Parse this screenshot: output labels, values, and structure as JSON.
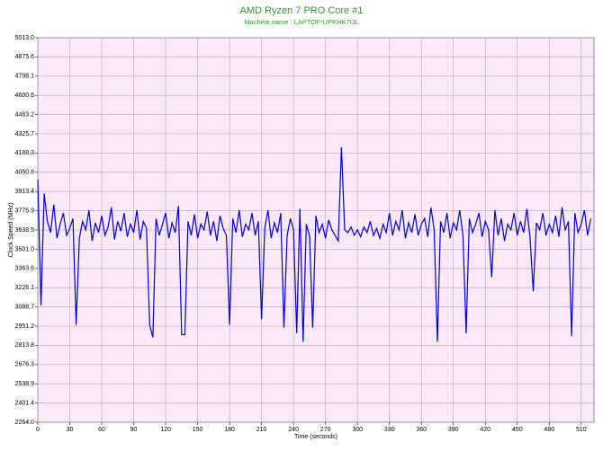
{
  "chart_data": {
    "type": "line",
    "title": "AMD Ryzen 7 PRO Core #1",
    "subtitle": "Machine name : LAPTOP-UPKHK7OL",
    "x_label": "Time (seconds)",
    "y_label": "Clock Speed (MHz)",
    "xlim": [
      0,
      522
    ],
    "ylim": [
      2264.0,
      5013.0
    ],
    "xticks": [
      0,
      30,
      60,
      90,
      120,
      150,
      180,
      210,
      240,
      270,
      300,
      330,
      360,
      390,
      420,
      450,
      480,
      510
    ],
    "yticks": [
      {
        "value": 2264.0,
        "label": "2264.0"
      },
      2401.4,
      2538.9,
      2676.3,
      2813.8,
      2951.2,
      3088.7,
      3226.1,
      3363.6,
      {
        "value": 3501.0,
        "label": "3501.0"
      },
      3638.5,
      3775.9,
      3913.4,
      4050.8,
      4188.3,
      4325.7,
      4463.2,
      4600.6,
      4738.1,
      4875.6,
      {
        "value": 5013.0,
        "label": "5013.0"
      }
    ],
    "grid": true,
    "x": [
      0,
      3,
      6,
      9,
      12,
      15,
      18,
      21,
      24,
      27,
      30,
      33,
      36,
      39,
      42,
      45,
      48,
      51,
      54,
      57,
      60,
      63,
      66,
      69,
      72,
      75,
      78,
      81,
      84,
      87,
      90,
      93,
      96,
      99,
      102,
      105,
      108,
      111,
      114,
      117,
      120,
      123,
      126,
      129,
      132,
      135,
      138,
      141,
      144,
      147,
      150,
      153,
      156,
      159,
      162,
      165,
      168,
      171,
      174,
      177,
      180,
      183,
      186,
      189,
      192,
      195,
      198,
      201,
      204,
      207,
      210,
      213,
      216,
      219,
      222,
      225,
      228,
      231,
      234,
      237,
      240,
      243,
      246,
      249,
      252,
      255,
      258,
      261,
      264,
      267,
      270,
      273,
      276,
      279,
      282,
      285,
      288,
      291,
      294,
      297,
      300,
      303,
      306,
      309,
      312,
      315,
      318,
      321,
      324,
      327,
      330,
      333,
      336,
      339,
      342,
      345,
      348,
      351,
      354,
      357,
      360,
      363,
      366,
      369,
      372,
      375,
      378,
      381,
      384,
      387,
      390,
      393,
      396,
      399,
      402,
      405,
      408,
      411,
      414,
      417,
      420,
      423,
      426,
      429,
      432,
      435,
      438,
      441,
      444,
      447,
      450,
      453,
      456,
      459,
      462,
      465,
      468,
      471,
      474,
      477,
      480,
      483,
      486,
      489,
      492,
      495,
      498,
      501,
      504,
      507,
      510,
      513,
      516,
      519
    ],
    "series": [
      {
        "color": "#0000cc",
        "values": [
          4000,
          3100,
          3900,
          3700,
          3620,
          3820,
          3580,
          3680,
          3760,
          3600,
          3650,
          3720,
          2960,
          3580,
          3700,
          3640,
          3780,
          3560,
          3690,
          3620,
          3740,
          3600,
          3660,
          3800,
          3570,
          3700,
          3630,
          3760,
          3590,
          3680,
          3620,
          3780,
          3570,
          3700,
          3650,
          2960,
          2870,
          3720,
          3600,
          3680,
          3760,
          3580,
          3690,
          3620,
          3810,
          2890,
          2890,
          3700,
          3600,
          3750,
          3580,
          3680,
          3640,
          3770,
          3600,
          3700,
          3560,
          3740,
          3650,
          3600,
          2960,
          3720,
          3620,
          3780,
          3590,
          3680,
          3640,
          3760,
          3600,
          3700,
          3000,
          3650,
          3780,
          3580,
          3690,
          3620,
          3760,
          2940,
          3600,
          3720,
          3640,
          2900,
          3790,
          2840,
          3680,
          3600,
          2940,
          3740,
          3620,
          3680,
          3580,
          3710,
          3640,
          3600,
          3560,
          4230,
          3640,
          3620,
          3660,
          3600,
          3640,
          3590,
          3660,
          3620,
          3700,
          3600,
          3650,
          3580,
          3680,
          3620,
          3760,
          3600,
          3700,
          3640,
          3780,
          3580,
          3690,
          3620,
          3750,
          3600,
          3680,
          3720,
          3590,
          3800,
          3640,
          2840,
          3700,
          3620,
          3760,
          3580,
          3690,
          3640,
          3780,
          3600,
          2900,
          3720,
          3620,
          3680,
          3760,
          3590,
          3700,
          3640,
          3300,
          3780,
          3600,
          3720,
          3560,
          3680,
          3640,
          3760,
          3600,
          3700,
          3620,
          3790,
          3580,
          3200,
          3690,
          3640,
          3760,
          3600,
          3680,
          3620,
          3740,
          3590,
          3800,
          3640,
          3700,
          2880,
          3760,
          3620,
          3680,
          3780,
          3600,
          3720
        ]
      }
    ]
  }
}
